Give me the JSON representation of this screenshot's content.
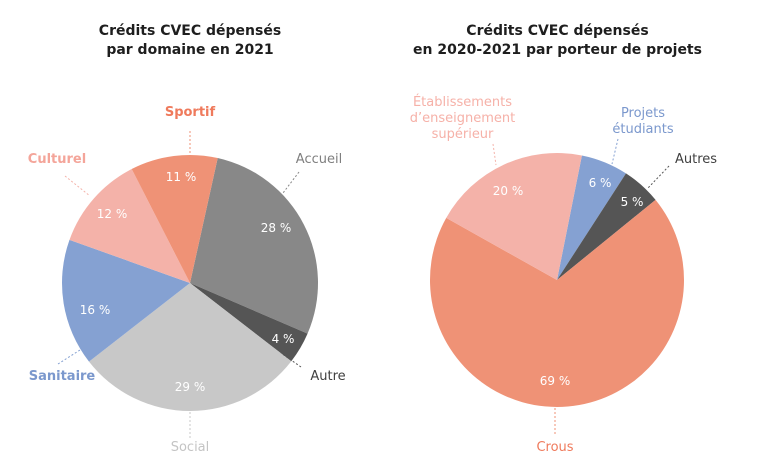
{
  "chart_data": [
    {
      "type": "pie",
      "title": "Crédits CVEC dépensés par domaine en 2021",
      "title_lines": [
        "Crédits CVEC dépensés",
        "par domaine en 2021"
      ],
      "categories": [
        "Accueil",
        "Autre",
        "Social",
        "Sanitaire",
        "Culturel",
        "Sportif"
      ],
      "values": [
        28,
        4,
        29,
        16,
        12,
        11
      ],
      "labels": [
        "28 %",
        "4 %",
        "29 %",
        "16 %",
        "12 %",
        "11 %"
      ],
      "colors": [
        "#888888",
        "#555555",
        "#c8c8c8",
        "#85a1d2",
        "#f4b2a9",
        "#ef9276"
      ],
      "unit": "%"
    },
    {
      "type": "pie",
      "title": "Crédits CVEC dépensés en 2020-2021 par porteur de projets",
      "title_lines": [
        "Crédits CVEC dépensés",
        "en 2020-2021 par porteur de projets"
      ],
      "categories": [
        "Projets étudiants",
        "Autres",
        "Crous",
        "Établissements d’enseignement supérieur"
      ],
      "values": [
        6,
        5,
        69,
        20
      ],
      "labels": [
        "6 %",
        "5 %",
        "69 %",
        "20 %"
      ],
      "colors": [
        "#85a1d2",
        "#555555",
        "#ef9276",
        "#f4b2a9"
      ],
      "unit": "%"
    }
  ],
  "left": {
    "title_line1": "Crédits CVEC dépensés",
    "title_line2": "par domaine en 2021",
    "legend": {
      "sportif": "Sportif",
      "culturel": "Culturel",
      "accueil": "Accueil",
      "sanitaire": "Sanitaire",
      "autre": "Autre",
      "social": "Social"
    },
    "pct": {
      "accueil": "28 %",
      "autre": "4 %",
      "social": "29 %",
      "sanitaire": "16 %",
      "culturel": "12 %",
      "sportif": "11 %"
    }
  },
  "right": {
    "title_line1": "Crédits CVEC dépensés",
    "title_line2": "en 2020-2021 par porteur de projets",
    "legend": {
      "etab_line1": "Établissements",
      "etab_line2": "d’enseignement",
      "etab_line3": "supérieur",
      "projets_line1": "Projets",
      "projets_line2": "étudiants",
      "autres": "Autres",
      "crous": "Crous"
    },
    "pct": {
      "projets": "6 %",
      "autres": "5 %",
      "crous": "69 %",
      "etab": "20 %"
    }
  }
}
